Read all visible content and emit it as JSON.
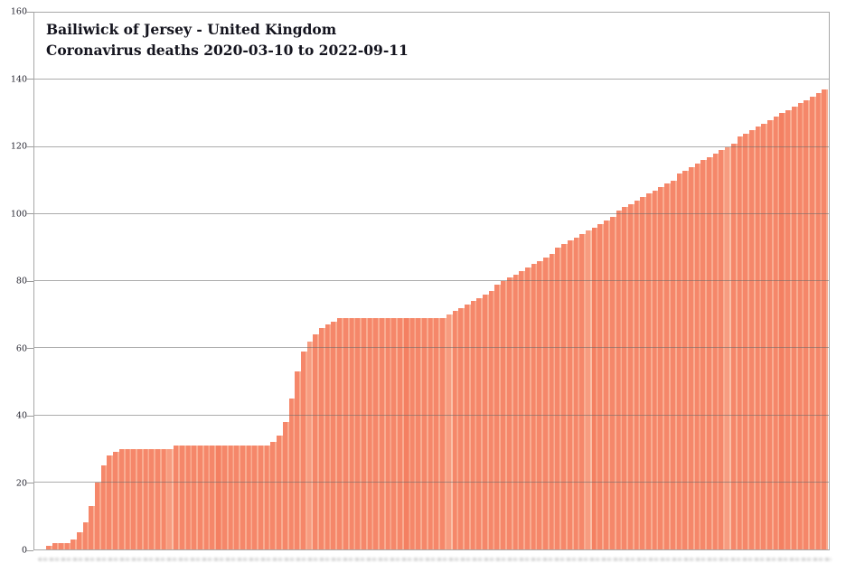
{
  "window": {
    "kind": "static-chart-image",
    "background": "#ffffff"
  },
  "chart_data": {
    "type": "bar",
    "title": "Bailiwick of Jersey - United Kingdom",
    "subtitle": "Coronavirus deaths 2020-03-10 to 2022-09-11",
    "xlabel": "",
    "ylabel": "",
    "ylim": [
      0,
      160
    ],
    "yticks": [
      0,
      20,
      40,
      60,
      80,
      100,
      120,
      140,
      160
    ],
    "grid": true,
    "legend": false,
    "x_start_date": "2020-03-10",
    "x_end_date": "2022-09-11",
    "x_interval": "weekly",
    "x_axis_labels": "present but blurred/illegible in source image",
    "series_name": "Cumulative coronavirus deaths",
    "values": [
      0,
      0,
      1,
      2,
      2,
      2,
      3,
      5,
      8,
      13,
      20,
      25,
      28,
      29,
      30,
      30,
      30,
      30,
      30,
      30,
      30,
      30,
      30,
      31,
      31,
      31,
      31,
      31,
      31,
      31,
      31,
      31,
      31,
      31,
      31,
      31,
      31,
      31,
      31,
      32,
      34,
      38,
      45,
      53,
      59,
      62,
      64,
      66,
      67,
      68,
      69,
      69,
      69,
      69,
      69,
      69,
      69,
      69,
      69,
      69,
      69,
      69,
      69,
      69,
      69,
      69,
      69,
      69,
      70,
      71,
      72,
      73,
      74,
      75,
      76,
      77,
      79,
      80,
      81,
      82,
      83,
      84,
      85,
      86,
      87,
      88,
      90,
      91,
      92,
      93,
      94,
      95,
      96,
      97,
      98,
      99,
      101,
      102,
      103,
      104,
      105,
      106,
      107,
      108,
      109,
      110,
      112,
      113,
      114,
      115,
      116,
      117,
      118,
      119,
      120,
      121,
      123,
      124,
      125,
      126,
      127,
      128,
      129,
      130,
      131,
      132,
      133,
      134,
      135,
      136,
      137
    ]
  },
  "colors": {
    "bar": "#f5876a",
    "bar_edge_light": "#f9ad92",
    "gridline": "#686868",
    "frame": "#a8a8a8",
    "title_text": "#14141e",
    "axis_label_text": "#23232e"
  }
}
